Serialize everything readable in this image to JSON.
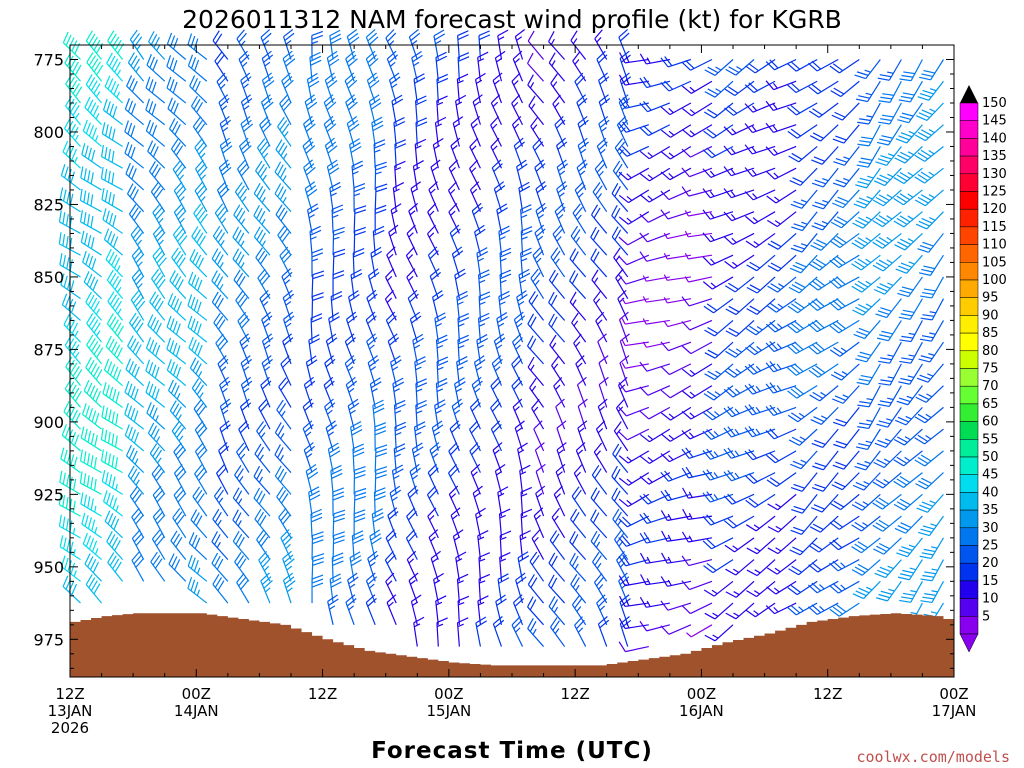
{
  "chart_data": {
    "type": "wind-barb-time-height",
    "title": "2026011312 NAM forecast wind profile (kt) for KGRB",
    "xlabel": "Forecast Time (UTC)",
    "credit": "coolwx.com/models",
    "y_ticks": [
      "775",
      "800",
      "825",
      "850",
      "875",
      "900",
      "925",
      "950",
      "975"
    ],
    "y_range_hpa": [
      770,
      988
    ],
    "x_ticks": [
      {
        "hour": 0,
        "line1": "12Z",
        "line2": "13JAN",
        "line3": "2026"
      },
      {
        "hour": 12,
        "line1": "00Z",
        "line2": "14JAN",
        "line3": ""
      },
      {
        "hour": 24,
        "line1": "12Z",
        "line2": "",
        "line3": ""
      },
      {
        "hour": 36,
        "line1": "00Z",
        "line2": "15JAN",
        "line3": ""
      },
      {
        "hour": 48,
        "line1": "12Z",
        "line2": "",
        "line3": ""
      },
      {
        "hour": 60,
        "line1": "00Z",
        "line2": "16JAN",
        "line3": ""
      },
      {
        "hour": 72,
        "line1": "12Z",
        "line2": "",
        "line3": ""
      },
      {
        "hour": 84,
        "line1": "00Z",
        "line2": "17JAN",
        "line3": ""
      }
    ],
    "x_range_hours": [
      0,
      84
    ],
    "colorbar": {
      "labels": [
        "150",
        "145",
        "140",
        "135",
        "130",
        "125",
        "120",
        "115",
        "110",
        "105",
        "100",
        "95",
        "90",
        "85",
        "80",
        "75",
        "70",
        "65",
        "60",
        "55",
        "50",
        "45",
        "40",
        "35",
        "30",
        "25",
        "20",
        "15",
        "10",
        "5"
      ],
      "colors": [
        "#ff00ff",
        "#ff00cc",
        "#ff0099",
        "#ff0066",
        "#ff0033",
        "#ff0000",
        "#ff2200",
        "#ff4400",
        "#ff6600",
        "#ff8800",
        "#ffaa00",
        "#ffcc00",
        "#ffee00",
        "#ffff00",
        "#ccff00",
        "#99ff33",
        "#66ff33",
        "#33ee33",
        "#00dd55",
        "#00ee99",
        "#00eecc",
        "#00ddee",
        "#00bbee",
        "#0099ee",
        "#0077ee",
        "#0055ee",
        "#0033ee",
        "#2200ee",
        "#5500ee",
        "#8800ee"
      ]
    },
    "terrain_color": "#a0522d",
    "surface_pressure_hpa": [
      {
        "hour": 0,
        "p": 969
      },
      {
        "hour": 3,
        "p": 967
      },
      {
        "hour": 6,
        "p": 966
      },
      {
        "hour": 12,
        "p": 966
      },
      {
        "hour": 16,
        "p": 968
      },
      {
        "hour": 20,
        "p": 970
      },
      {
        "hour": 24,
        "p": 975
      },
      {
        "hour": 28,
        "p": 979
      },
      {
        "hour": 32,
        "p": 981
      },
      {
        "hour": 36,
        "p": 983
      },
      {
        "hour": 40,
        "p": 984
      },
      {
        "hour": 44,
        "p": 984
      },
      {
        "hour": 50,
        "p": 984
      },
      {
        "hour": 54,
        "p": 982
      },
      {
        "hour": 58,
        "p": 980
      },
      {
        "hour": 62,
        "p": 976
      },
      {
        "hour": 66,
        "p": 973
      },
      {
        "hour": 70,
        "p": 969
      },
      {
        "hour": 74,
        "p": 967
      },
      {
        "hour": 78,
        "p": 966
      },
      {
        "hour": 82,
        "p": 967
      },
      {
        "hour": 84,
        "p": 969
      }
    ],
    "wind_regimes": [
      {
        "hour_start": 0,
        "hour_end": 6,
        "dir_deg": 310,
        "speed_kt": 45
      },
      {
        "hour_start": 6,
        "hour_end": 14,
        "dir_deg": 320,
        "speed_kt": 35
      },
      {
        "hour_start": 14,
        "hour_end": 22,
        "dir_deg": 330,
        "speed_kt": 28
      },
      {
        "hour_start": 22,
        "hour_end": 30,
        "dir_deg": 350,
        "speed_kt": 25
      },
      {
        "hour_start": 30,
        "hour_end": 44,
        "dir_deg": 345,
        "speed_kt": 20
      },
      {
        "hour_start": 44,
        "hour_end": 54,
        "dir_deg": 330,
        "speed_kt": 18
      },
      {
        "hour_start": 54,
        "hour_end": 62,
        "dir_deg": 250,
        "speed_kt": 12
      },
      {
        "hour_start": 62,
        "hour_end": 70,
        "dir_deg": 240,
        "speed_kt": 20
      },
      {
        "hour_start": 70,
        "hour_end": 76,
        "dir_deg": 230,
        "speed_kt": 25
      },
      {
        "hour_start": 76,
        "hour_end": 84,
        "dir_deg": 220,
        "speed_kt": 30
      }
    ]
  }
}
